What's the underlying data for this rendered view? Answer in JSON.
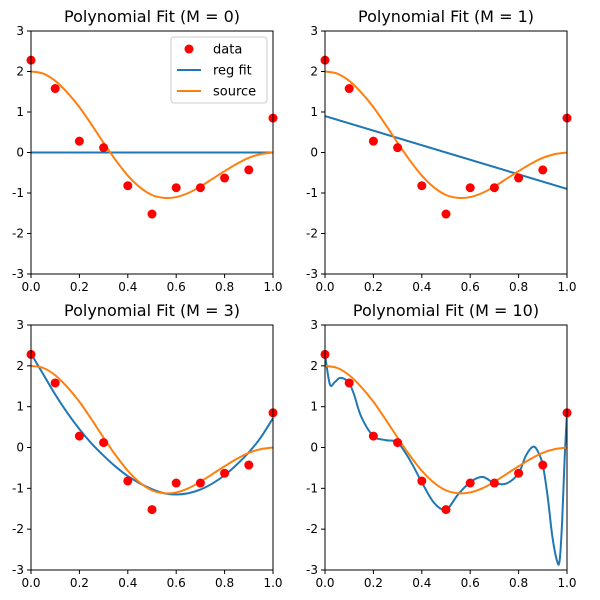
{
  "figure": {
    "x_ticks": [
      "0.0",
      "0.2",
      "0.4",
      "0.6",
      "0.8",
      "1.0"
    ],
    "y_ticks": [
      "3",
      "2",
      "1",
      "0",
      "-1",
      "-2",
      "-3"
    ]
  },
  "legend": {
    "placement": "top-right of first panel",
    "entries": [
      {
        "label": "data",
        "marker": "circle",
        "color": "#ff0000"
      },
      {
        "label": "reg fit",
        "marker": "line",
        "color": "#1f77b4"
      },
      {
        "label": "source",
        "marker": "line",
        "color": "#ff7f0e"
      }
    ]
  },
  "colors": {
    "data": "#ff0000",
    "reg_fit": "#1f77b4",
    "source": "#ff7f0e"
  },
  "chart_data": [
    {
      "type": "line",
      "title": "Polynomial Fit (M = 0)",
      "xlim": [
        0,
        1
      ],
      "ylim": [
        -3,
        3
      ],
      "data_points": {
        "x": [
          0.0,
          0.1,
          0.2,
          0.3,
          0.4,
          0.5,
          0.6,
          0.7,
          0.8,
          0.9,
          1.0
        ],
        "y": [
          2.28,
          1.58,
          0.28,
          0.12,
          -0.82,
          -1.52,
          -0.87,
          -0.87,
          -0.63,
          -0.43,
          0.85
        ]
      },
      "reg_fit": {
        "x": [
          0.0,
          1.0
        ],
        "y": [
          0.0,
          0.0
        ]
      },
      "source": {
        "x": [
          0.0,
          0.05,
          0.1,
          0.15,
          0.2,
          0.25,
          0.3,
          0.35,
          0.4,
          0.45,
          0.5,
          0.55,
          0.6,
          0.65,
          0.7,
          0.75,
          0.8,
          0.85,
          0.9,
          0.95,
          1.0
        ],
        "y": [
          2.0,
          1.95,
          1.77,
          1.48,
          1.12,
          0.69,
          0.24,
          -0.19,
          -0.57,
          -0.86,
          -1.05,
          -1.12,
          -1.1,
          -1.0,
          -0.84,
          -0.65,
          -0.46,
          -0.28,
          -0.13,
          -0.04,
          0.0
        ]
      },
      "show_legend": true
    },
    {
      "type": "line",
      "title": "Polynomial Fit (M = 1)",
      "xlim": [
        0,
        1
      ],
      "ylim": [
        -3,
        3
      ],
      "data_points": {
        "x": [
          0.0,
          0.1,
          0.2,
          0.3,
          0.4,
          0.5,
          0.6,
          0.7,
          0.8,
          0.9,
          1.0
        ],
        "y": [
          2.28,
          1.58,
          0.28,
          0.12,
          -0.82,
          -1.52,
          -0.87,
          -0.87,
          -0.63,
          -0.43,
          0.85
        ]
      },
      "reg_fit": {
        "x": [
          0.0,
          1.0
        ],
        "y": [
          0.9,
          -0.9
        ]
      },
      "source": {
        "x": [
          0.0,
          0.05,
          0.1,
          0.15,
          0.2,
          0.25,
          0.3,
          0.35,
          0.4,
          0.45,
          0.5,
          0.55,
          0.6,
          0.65,
          0.7,
          0.75,
          0.8,
          0.85,
          0.9,
          0.95,
          1.0
        ],
        "y": [
          2.0,
          1.95,
          1.77,
          1.48,
          1.12,
          0.69,
          0.24,
          -0.19,
          -0.57,
          -0.86,
          -1.05,
          -1.12,
          -1.1,
          -1.0,
          -0.84,
          -0.65,
          -0.46,
          -0.28,
          -0.13,
          -0.04,
          0.0
        ]
      },
      "show_legend": false
    },
    {
      "type": "line",
      "title": "Polynomial Fit (M = 3)",
      "xlim": [
        0,
        1
      ],
      "ylim": [
        -3,
        3
      ],
      "data_points": {
        "x": [
          0.0,
          0.1,
          0.2,
          0.3,
          0.4,
          0.5,
          0.6,
          0.7,
          0.8,
          0.9,
          1.0
        ],
        "y": [
          2.28,
          1.58,
          0.28,
          0.12,
          -0.82,
          -1.52,
          -0.87,
          -0.87,
          -0.63,
          -0.43,
          0.85
        ]
      },
      "reg_fit": {
        "x": [
          0.0,
          0.05,
          0.1,
          0.15,
          0.2,
          0.25,
          0.3,
          0.35,
          0.4,
          0.45,
          0.5,
          0.55,
          0.6,
          0.65,
          0.7,
          0.75,
          0.8,
          0.85,
          0.9,
          0.95,
          1.0
        ],
        "y": [
          2.3,
          1.8,
          1.3,
          0.85,
          0.45,
          0.1,
          -0.2,
          -0.47,
          -0.7,
          -0.88,
          -1.02,
          -1.12,
          -1.15,
          -1.12,
          -1.03,
          -0.88,
          -0.68,
          -0.42,
          -0.12,
          0.25,
          0.72
        ]
      },
      "source": {
        "x": [
          0.0,
          0.05,
          0.1,
          0.15,
          0.2,
          0.25,
          0.3,
          0.35,
          0.4,
          0.45,
          0.5,
          0.55,
          0.6,
          0.65,
          0.7,
          0.75,
          0.8,
          0.85,
          0.9,
          0.95,
          1.0
        ],
        "y": [
          2.0,
          1.95,
          1.77,
          1.48,
          1.12,
          0.69,
          0.24,
          -0.19,
          -0.57,
          -0.86,
          -1.05,
          -1.12,
          -1.1,
          -1.0,
          -0.84,
          -0.65,
          -0.46,
          -0.28,
          -0.13,
          -0.04,
          0.0
        ]
      },
      "show_legend": false
    },
    {
      "type": "line",
      "title": "Polynomial Fit (M = 10)",
      "xlim": [
        0,
        1
      ],
      "ylim": [
        -3,
        3
      ],
      "data_points": {
        "x": [
          0.0,
          0.1,
          0.2,
          0.3,
          0.4,
          0.5,
          0.6,
          0.7,
          0.8,
          0.9,
          1.0
        ],
        "y": [
          2.28,
          1.58,
          0.28,
          0.12,
          -0.82,
          -1.52,
          -0.87,
          -0.87,
          -0.63,
          -0.43,
          0.85
        ]
      },
      "reg_fit": {
        "x": [
          0.0,
          0.02,
          0.04,
          0.06,
          0.08,
          0.1,
          0.12,
          0.15,
          0.2,
          0.25,
          0.3,
          0.35,
          0.4,
          0.45,
          0.5,
          0.55,
          0.6,
          0.65,
          0.7,
          0.75,
          0.8,
          0.83,
          0.86,
          0.88,
          0.9,
          0.92,
          0.94,
          0.96,
          0.97,
          0.98,
          0.99,
          1.0
        ],
        "y": [
          2.28,
          1.55,
          1.6,
          1.7,
          1.68,
          1.58,
          1.3,
          0.75,
          0.28,
          0.18,
          0.12,
          -0.3,
          -0.85,
          -1.35,
          -1.52,
          -1.15,
          -0.85,
          -0.72,
          -0.87,
          -0.88,
          -0.63,
          -0.2,
          0.02,
          -0.1,
          -0.43,
          -1.2,
          -2.2,
          -2.8,
          -2.75,
          -1.8,
          -0.3,
          0.85
        ]
      },
      "source": {
        "x": [
          0.0,
          0.05,
          0.1,
          0.15,
          0.2,
          0.25,
          0.3,
          0.35,
          0.4,
          0.45,
          0.5,
          0.55,
          0.6,
          0.65,
          0.7,
          0.75,
          0.8,
          0.85,
          0.9,
          0.95,
          1.0
        ],
        "y": [
          2.0,
          1.95,
          1.77,
          1.48,
          1.12,
          0.69,
          0.24,
          -0.19,
          -0.57,
          -0.86,
          -1.05,
          -1.12,
          -1.1,
          -1.0,
          -0.84,
          -0.65,
          -0.46,
          -0.28,
          -0.13,
          -0.04,
          0.0
        ]
      },
      "show_legend": false
    }
  ]
}
